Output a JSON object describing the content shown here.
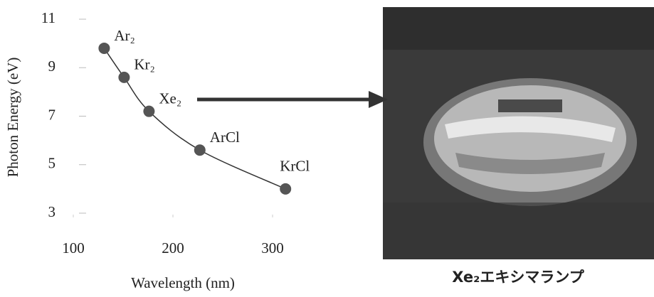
{
  "chart_data": {
    "type": "scatter",
    "x_label": "Wavelength (nm)",
    "y_label": "Photon Energy (eV)",
    "xlim": [
      100,
      320
    ],
    "ylim": [
      3,
      11
    ],
    "xticks": [
      100,
      200,
      300
    ],
    "yticks": [
      3,
      5,
      7,
      9,
      11
    ],
    "color": "#555555",
    "series": [
      {
        "name": null,
        "x": [
          131,
          151,
          176,
          227,
          313
        ],
        "values": [
          9.8,
          8.6,
          7.2,
          5.6,
          4.0
        ],
        "point_labels": [
          "Ar₂",
          "Kr₂",
          "Xe₂",
          "ArCl",
          "KrCl"
        ]
      }
    ]
  },
  "photo": {
    "caption": "Xe₂エキシマランプ"
  }
}
